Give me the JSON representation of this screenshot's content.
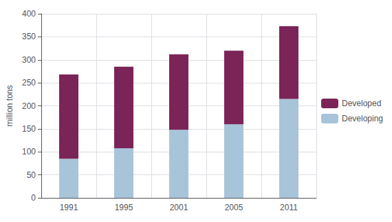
{
  "chart_data": {
    "type": "bar",
    "stacked": true,
    "categories": [
      "1991",
      "1995",
      "2001",
      "2005",
      "2011"
    ],
    "series": [
      {
        "name": "Developing",
        "color": "#A8C4D8",
        "values": [
          85,
          108,
          148,
          160,
          215
        ]
      },
      {
        "name": "Developed",
        "color": "#7B2457",
        "values": [
          183,
          177,
          164,
          160,
          158
        ]
      }
    ],
    "ylabel": "million tons",
    "ylim": [
      0,
      400
    ],
    "yticks": [
      0,
      50,
      100,
      150,
      200,
      250,
      300,
      350,
      400
    ],
    "grid": true,
    "legend": "center right"
  }
}
